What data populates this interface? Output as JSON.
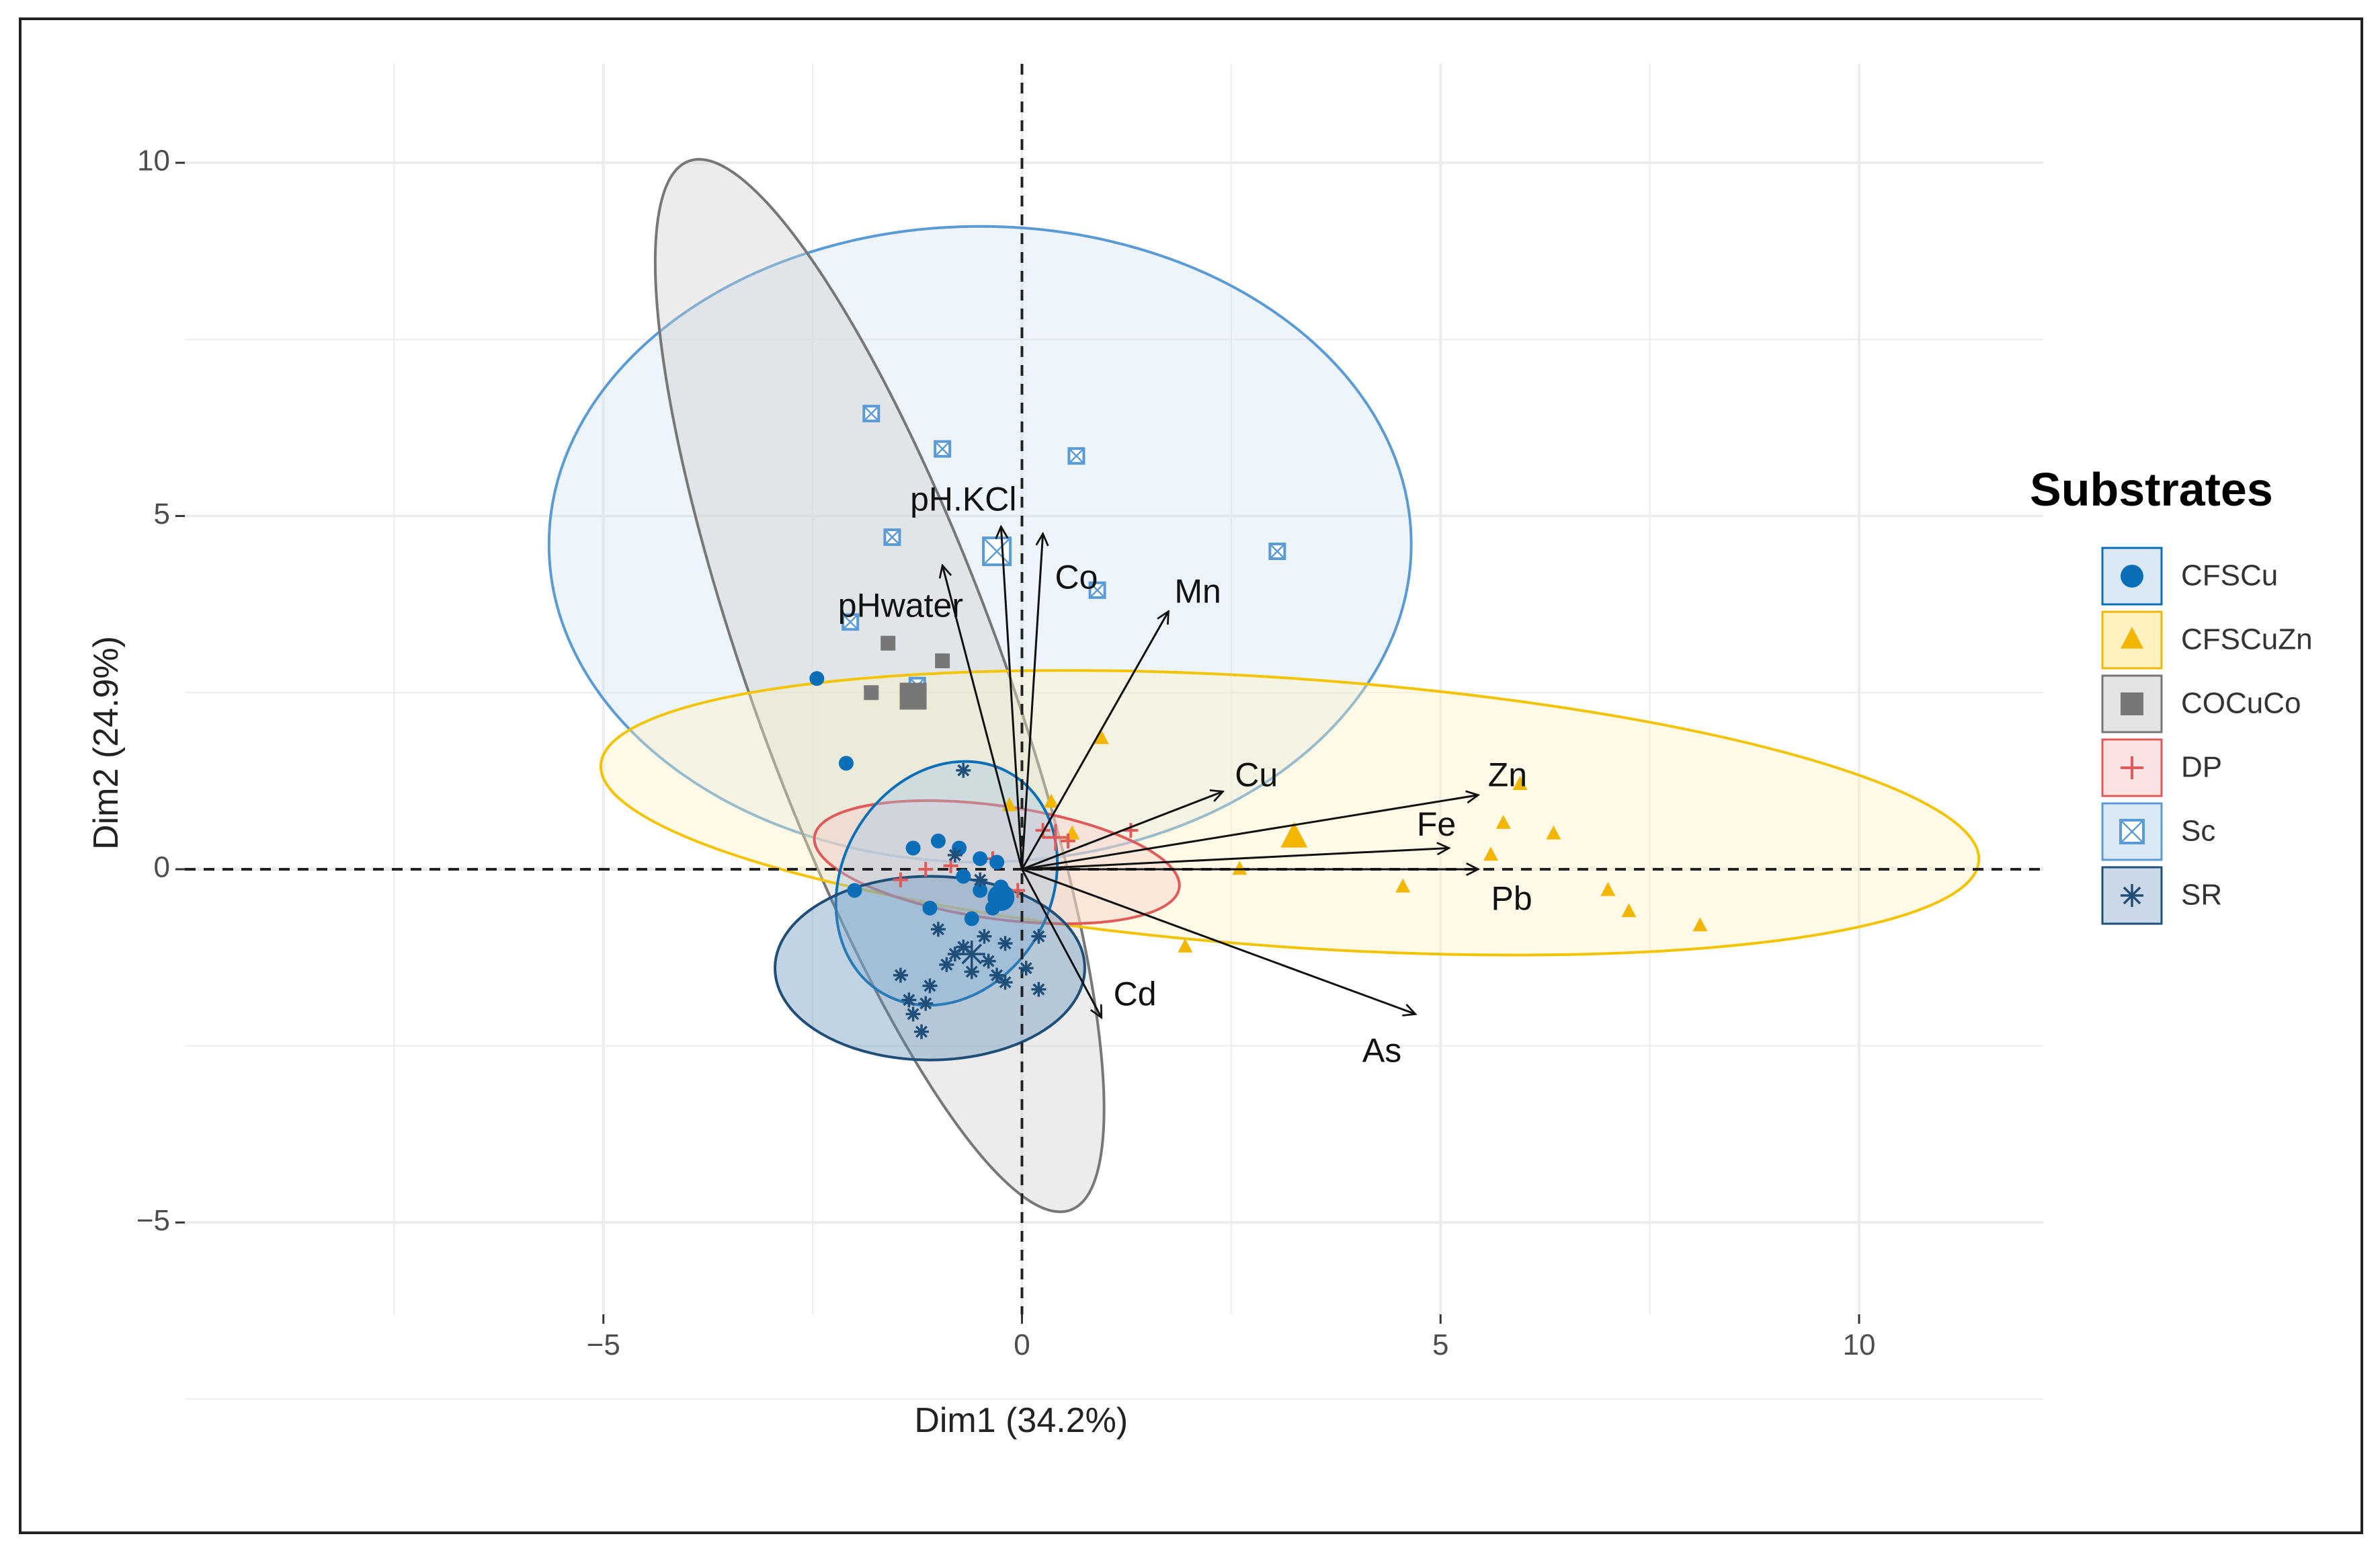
{
  "chart_data": {
    "type": "scatter",
    "subtype": "pca-biplot",
    "xlabel": "Dim1 (34.2%)",
    "ylabel": "Dim2 (24.9%)",
    "xlim": [
      -10,
      12.2
    ],
    "ylim": [
      -6.3,
      11.4
    ],
    "xticks": [
      -5,
      0,
      5,
      10
    ],
    "yticks": [
      -5,
      0,
      5,
      10
    ],
    "xtick_labels": [
      "−5",
      "0",
      "5",
      "10"
    ],
    "ytick_labels": [
      "−5",
      "0",
      "5",
      "10"
    ],
    "grid": true,
    "legend": {
      "title": "Substrates",
      "position": "right",
      "entries": [
        {
          "name": "CFSCu",
          "marker": "circle",
          "color": "#0a6fb8"
        },
        {
          "name": "CFSCuZn",
          "marker": "triangle",
          "color": "#f2b600"
        },
        {
          "name": "COCuCo",
          "marker": "square",
          "color": "#777777"
        },
        {
          "name": "DP",
          "marker": "plus",
          "color": "#e05a5a"
        },
        {
          "name": "Sc",
          "marker": "square-x",
          "color": "#5b9bd5"
        },
        {
          "name": "SR",
          "marker": "asterisk",
          "color": "#1f4e79"
        }
      ]
    },
    "ellipses": [
      {
        "group": "Sc",
        "cx": -0.5,
        "cy": 4.6,
        "rx": 5.15,
        "ry": 4.5,
        "angle": 0,
        "fill": "#cfe2f3",
        "stroke": "#5b9bd5"
      },
      {
        "group": "COCuCo",
        "cx": -1.7,
        "cy": 2.6,
        "rx": 1.5,
        "ry": 7.9,
        "angle": 20,
        "fill": "#cccccc",
        "stroke": "#777777"
      },
      {
        "group": "CFSCuZn",
        "cx": 3.2,
        "cy": 0.8,
        "rx": 8.25,
        "ry": 1.9,
        "angle": -4,
        "fill": "#fff2c0",
        "stroke": "#f2c400"
      },
      {
        "group": "DP",
        "cx": -0.3,
        "cy": 0.1,
        "rx": 2.2,
        "ry": 0.8,
        "angle": -8,
        "fill": "#f6c9c9",
        "stroke": "#e05a5a"
      },
      {
        "group": "CFSCu",
        "cx": -0.9,
        "cy": -0.2,
        "rx": 1.25,
        "ry": 1.8,
        "angle": -30,
        "fill": "#9fc5e8",
        "stroke": "#0a6fb8"
      },
      {
        "group": "SR",
        "cx": -1.1,
        "cy": -1.4,
        "rx": 1.85,
        "ry": 1.3,
        "angle": 0,
        "fill": "#5f8fb8",
        "stroke": "#1f4e79"
      }
    ],
    "series": [
      {
        "name": "Sc",
        "points": [
          [
            -1.8,
            6.45
          ],
          [
            -0.95,
            5.95
          ],
          [
            0.65,
            5.85
          ],
          [
            -1.55,
            4.7
          ],
          [
            3.05,
            4.5
          ],
          [
            0.9,
            3.95
          ],
          [
            -2.05,
            3.5
          ],
          [
            -1.25,
            2.6
          ]
        ],
        "centroid": [
          -0.3,
          4.5
        ]
      },
      {
        "name": "COCuCo",
        "points": [
          [
            -1.6,
            3.2
          ],
          [
            -0.95,
            2.95
          ],
          [
            -1.8,
            2.5
          ]
        ],
        "centroid": [
          -1.3,
          2.45
        ]
      },
      {
        "name": "CFSCuZn",
        "points": [
          [
            0.95,
            1.85
          ],
          [
            5.95,
            1.2
          ],
          [
            5.75,
            0.65
          ],
          [
            6.35,
            0.5
          ],
          [
            5.6,
            0.2
          ],
          [
            2.6,
            0.0
          ],
          [
            4.55,
            -0.25
          ],
          [
            7.0,
            -0.3
          ],
          [
            7.25,
            -0.6
          ],
          [
            8.1,
            -0.8
          ],
          [
            1.95,
            -1.1
          ],
          [
            0.35,
            0.95
          ],
          [
            -0.15,
            0.9
          ],
          [
            0.6,
            0.5
          ]
        ],
        "centroid": [
          3.25,
          0.45
        ]
      },
      {
        "name": "DP",
        "points": [
          [
            1.3,
            0.55
          ],
          [
            0.55,
            0.4
          ],
          [
            0.25,
            0.55
          ],
          [
            -0.35,
            0.15
          ],
          [
            -0.85,
            0.05
          ],
          [
            -1.15,
            0.0
          ],
          [
            -1.45,
            -0.15
          ],
          [
            -0.05,
            -0.3
          ]
        ],
        "centroid": [
          0.4,
          0.45
        ]
      },
      {
        "name": "CFSCu",
        "points": [
          [
            -2.45,
            2.7
          ],
          [
            -2.1,
            1.5
          ],
          [
            -2.0,
            -0.3
          ],
          [
            -1.3,
            0.3
          ],
          [
            -1.0,
            0.4
          ],
          [
            -0.75,
            0.3
          ],
          [
            -0.5,
            0.15
          ],
          [
            -0.3,
            0.1
          ],
          [
            -0.7,
            -0.1
          ],
          [
            -0.5,
            -0.3
          ],
          [
            -0.25,
            -0.25
          ],
          [
            -1.1,
            -0.55
          ],
          [
            -0.6,
            -0.7
          ],
          [
            -0.35,
            -0.55
          ]
        ],
        "centroid": [
          -0.25,
          -0.4
        ]
      },
      {
        "name": "SR",
        "points": [
          [
            -0.7,
            1.4
          ],
          [
            -1.45,
            -1.5
          ],
          [
            -1.35,
            -1.85
          ],
          [
            -1.3,
            -2.05
          ],
          [
            -1.15,
            -1.9
          ],
          [
            -1.2,
            -2.3
          ],
          [
            -1.1,
            -1.65
          ],
          [
            -0.9,
            -1.35
          ],
          [
            -0.8,
            -1.2
          ],
          [
            -0.6,
            -1.45
          ],
          [
            -0.4,
            -1.3
          ],
          [
            -0.3,
            -1.5
          ],
          [
            -0.2,
            -1.6
          ],
          [
            0.05,
            -1.4
          ],
          [
            0.2,
            -1.7
          ],
          [
            -0.7,
            -1.1
          ],
          [
            -0.45,
            -0.95
          ],
          [
            -0.2,
            -1.05
          ],
          [
            0.2,
            -0.95
          ],
          [
            -1.0,
            -0.85
          ],
          [
            -0.5,
            -0.15
          ],
          [
            -0.8,
            0.2
          ]
        ],
        "centroid": [
          -0.6,
          -1.2
        ]
      }
    ],
    "variables": [
      {
        "name": "pH.KCl",
        "x": -0.25,
        "y": 4.85,
        "label_x": -0.7,
        "label_y": 5.2
      },
      {
        "name": "Co",
        "x": 0.25,
        "y": 4.75,
        "label_x": 0.65,
        "label_y": 4.1
      },
      {
        "name": "pHwater",
        "x": -0.95,
        "y": 4.3,
        "label_x": -1.45,
        "label_y": 3.7
      },
      {
        "name": "Mn",
        "x": 1.75,
        "y": 3.65,
        "label_x": 2.1,
        "label_y": 3.9
      },
      {
        "name": "Cu",
        "x": 2.4,
        "y": 1.1,
        "label_x": 2.8,
        "label_y": 1.3
      },
      {
        "name": "Zn",
        "x": 5.45,
        "y": 1.05,
        "label_x": 5.8,
        "label_y": 1.3
      },
      {
        "name": "Fe",
        "x": 5.1,
        "y": 0.3,
        "label_x": 4.95,
        "label_y": 0.6
      },
      {
        "name": "Pb",
        "x": 5.45,
        "y": 0.0,
        "label_x": 5.85,
        "label_y": -0.45
      },
      {
        "name": "Cd",
        "x": 0.95,
        "y": -2.1,
        "label_x": 1.35,
        "label_y": -1.8
      },
      {
        "name": "As",
        "x": 4.7,
        "y": -2.05,
        "label_x": 4.3,
        "label_y": -2.6
      }
    ]
  }
}
